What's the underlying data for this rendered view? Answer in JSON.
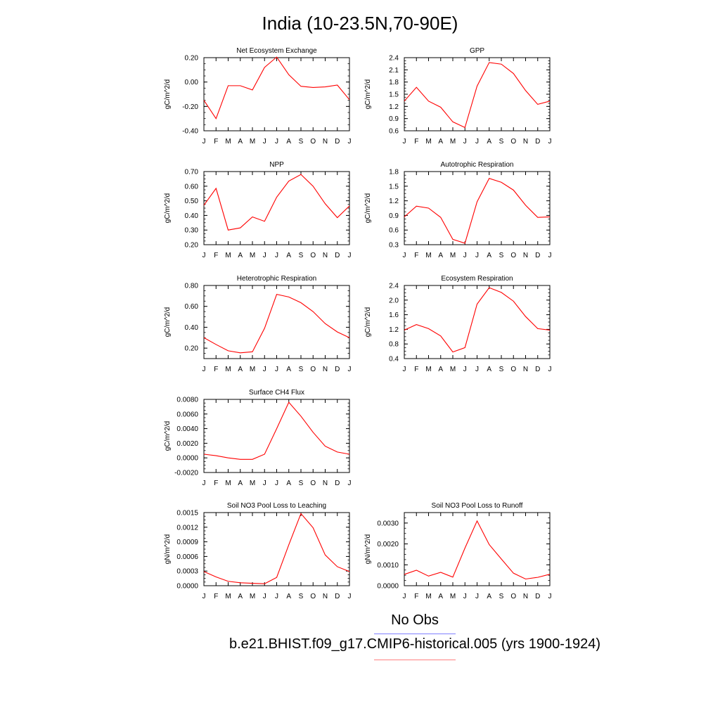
{
  "title": "India (10-23.5N,70-90E)",
  "legend": {
    "obs_label": "No Obs",
    "obs_color": "#8080ff",
    "model_label": "b.e21.BHIST.f09_g17.CMIP6-historical.005 (yrs 1900-1924)",
    "model_color": "#ff8080"
  },
  "line_color": "#ff0000",
  "chart_data": [
    {
      "type": "line",
      "title": "Net Ecosystem Exchange",
      "ylabel": "gC/m^2/d",
      "categories": [
        "J",
        "F",
        "M",
        "A",
        "M",
        "J",
        "J",
        "A",
        "S",
        "O",
        "N",
        "D",
        "J"
      ],
      "ylim": [
        -0.4,
        0.2
      ],
      "yticks": [
        -0.4,
        -0.2,
        0.0,
        0.2
      ],
      "ytick_labels": [
        "-0.40",
        "-0.20",
        "0.00",
        "0.20"
      ],
      "values": [
        -0.15,
        -0.3,
        -0.03,
        -0.03,
        -0.065,
        0.12,
        0.205,
        0.06,
        -0.035,
        -0.045,
        -0.04,
        -0.025,
        -0.145
      ]
    },
    {
      "type": "line",
      "title": "GPP",
      "ylabel": "gC/m^2/d",
      "categories": [
        "J",
        "F",
        "M",
        "A",
        "M",
        "J",
        "J",
        "A",
        "S",
        "O",
        "N",
        "D",
        "J"
      ],
      "ylim": [
        0.6,
        2.4
      ],
      "yticks": [
        0.6,
        0.9,
        1.2,
        1.5,
        1.8,
        2.1,
        2.4
      ],
      "ytick_labels": [
        "0.6",
        "0.9",
        "1.2",
        "1.5",
        "1.8",
        "2.1",
        "2.4"
      ],
      "values": [
        1.33,
        1.67,
        1.33,
        1.18,
        0.82,
        0.68,
        1.7,
        2.28,
        2.24,
        2.01,
        1.59,
        1.25,
        1.33
      ]
    },
    {
      "type": "line",
      "title": "NPP",
      "ylabel": "gC/m^2/d",
      "categories": [
        "J",
        "F",
        "M",
        "A",
        "M",
        "J",
        "J",
        "A",
        "S",
        "O",
        "N",
        "D",
        "J"
      ],
      "ylim": [
        0.2,
        0.7
      ],
      "yticks": [
        0.2,
        0.3,
        0.4,
        0.5,
        0.6,
        0.7
      ],
      "ytick_labels": [
        "0.20",
        "0.30",
        "0.40",
        "0.50",
        "0.60",
        "0.70"
      ],
      "values": [
        0.47,
        0.585,
        0.3,
        0.315,
        0.39,
        0.36,
        0.525,
        0.635,
        0.68,
        0.6,
        0.48,
        0.385,
        0.465
      ]
    },
    {
      "type": "line",
      "title": "Autotrophic Respiration",
      "ylabel": "gC/m^2/d",
      "categories": [
        "J",
        "F",
        "M",
        "A",
        "M",
        "J",
        "J",
        "A",
        "S",
        "O",
        "N",
        "D",
        "J"
      ],
      "ylim": [
        0.3,
        1.8
      ],
      "yticks": [
        0.3,
        0.6,
        0.9,
        1.2,
        1.5,
        1.8
      ],
      "ytick_labels": [
        "0.3",
        "0.6",
        "0.9",
        "1.2",
        "1.5",
        "1.8"
      ],
      "values": [
        0.87,
        1.09,
        1.05,
        0.86,
        0.41,
        0.33,
        1.18,
        1.66,
        1.58,
        1.42,
        1.11,
        0.86,
        0.87
      ]
    },
    {
      "type": "line",
      "title": "Heterotrophic Respiration",
      "ylabel": "gC/m^2/d",
      "categories": [
        "J",
        "F",
        "M",
        "A",
        "M",
        "J",
        "J",
        "A",
        "S",
        "O",
        "N",
        "D",
        "J"
      ],
      "ylim": [
        0.1,
        0.8
      ],
      "yticks": [
        0.2,
        0.4,
        0.6,
        0.8
      ],
      "ytick_labels": [
        "0.20",
        "0.40",
        "0.60",
        "0.80"
      ],
      "values": [
        0.3,
        0.235,
        0.175,
        0.155,
        0.165,
        0.39,
        0.715,
        0.69,
        0.635,
        0.55,
        0.435,
        0.355,
        0.3
      ]
    },
    {
      "type": "line",
      "title": "Ecosystem Respiration",
      "ylabel": "gC/m^2/d",
      "categories": [
        "J",
        "F",
        "M",
        "A",
        "M",
        "J",
        "J",
        "A",
        "S",
        "O",
        "N",
        "D",
        "J"
      ],
      "ylim": [
        0.4,
        2.4
      ],
      "yticks": [
        0.4,
        0.8,
        1.2,
        1.6,
        2.0,
        2.4
      ],
      "ytick_labels": [
        "0.4",
        "0.8",
        "1.2",
        "1.6",
        "2.0",
        "2.4"
      ],
      "values": [
        1.18,
        1.33,
        1.22,
        1.02,
        0.58,
        0.7,
        1.89,
        2.34,
        2.21,
        1.97,
        1.55,
        1.22,
        1.18
      ]
    },
    {
      "type": "line",
      "title": "Surface CH4 Flux",
      "ylabel": "gC/m^2/d",
      "categories": [
        "J",
        "F",
        "M",
        "A",
        "M",
        "J",
        "J",
        "A",
        "S",
        "O",
        "N",
        "D",
        "J"
      ],
      "ylim": [
        -0.002,
        0.008
      ],
      "yticks": [
        -0.002,
        0.0,
        0.002,
        0.004,
        0.006,
        0.008
      ],
      "ytick_labels": [
        "-0.0020",
        "0.0000",
        "0.0020",
        "0.0040",
        "0.0060",
        "0.0080"
      ],
      "values": [
        0.0005,
        0.0003,
        0.0,
        -0.0002,
        -0.0002,
        0.0005,
        0.004,
        0.0076,
        0.0057,
        0.0035,
        0.0016,
        0.0008,
        0.0005
      ]
    },
    {
      "type": "line",
      "title": "Soil NO3 Pool Loss to Leaching",
      "ylabel": "gN/m^2/d",
      "categories": [
        "J",
        "F",
        "M",
        "A",
        "M",
        "J",
        "J",
        "A",
        "S",
        "O",
        "N",
        "D",
        "J"
      ],
      "ylim": [
        0.0,
        0.0015
      ],
      "yticks": [
        0.0,
        0.0003,
        0.0006,
        0.0009,
        0.0012,
        0.0015
      ],
      "ytick_labels": [
        "0.0000",
        "0.0003",
        "0.0006",
        "0.0009",
        "0.0012",
        "0.0015"
      ],
      "values": [
        0.00029,
        0.00018,
        9e-05,
        6e-05,
        5e-05,
        4e-05,
        0.00017,
        0.00084,
        0.00148,
        0.00119,
        0.00063,
        0.00039,
        0.00029
      ]
    },
    {
      "type": "line",
      "title": "Soil NO3 Pool Loss to Runoff",
      "ylabel": "gN/m^2/d",
      "categories": [
        "J",
        "F",
        "M",
        "A",
        "M",
        "J",
        "J",
        "A",
        "S",
        "O",
        "N",
        "D",
        "J"
      ],
      "ylim": [
        0.0,
        0.0035
      ],
      "yticks": [
        0.0,
        0.001,
        0.002,
        0.003
      ],
      "ytick_labels": [
        "0.0000",
        "0.0010",
        "0.0020",
        "0.0030"
      ],
      "values": [
        0.00054,
        0.00074,
        0.00046,
        0.00064,
        0.00041,
        0.0018,
        0.0031,
        0.00197,
        0.00128,
        0.0006,
        0.00032,
        0.0004,
        0.00055
      ]
    }
  ]
}
